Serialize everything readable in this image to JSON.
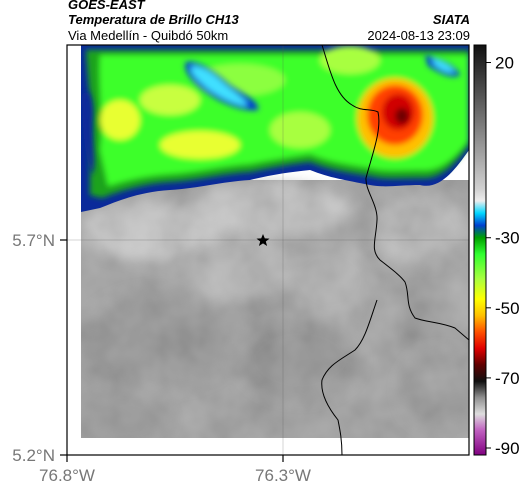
{
  "header": {
    "title": "GOES-EAST",
    "subtitle": "Temperatura de Brillo CH13",
    "region": "Via Medellín - Quibdó 50km",
    "agency": "SIATA",
    "timestamp": "2024-08-13 23:09"
  },
  "map": {
    "lat_ticks": [
      "5.7°N",
      "5.2°N"
    ],
    "lon_ticks": [
      "76.8°W",
      "76.3°W"
    ],
    "marker": "star-marker"
  },
  "colorbar": {
    "ticks": [
      "20",
      "-30",
      "-50",
      "-70",
      "-90"
    ],
    "tick_values": [
      20,
      -30,
      -50,
      -70,
      -90
    ],
    "range": [
      25,
      -92
    ]
  }
}
